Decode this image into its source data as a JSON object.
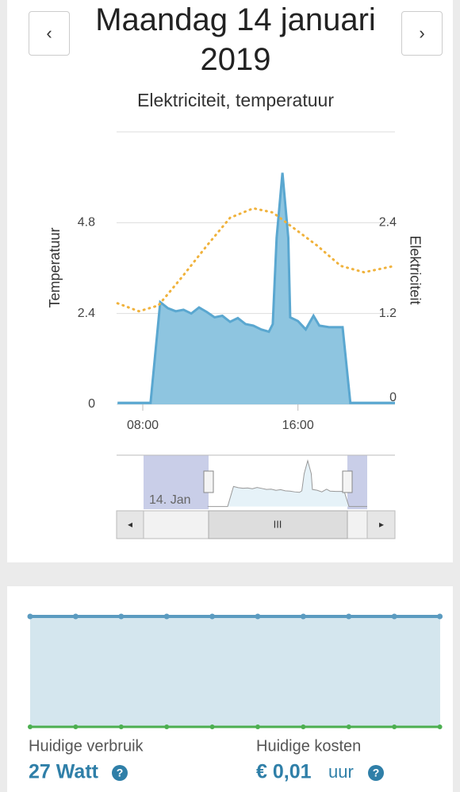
{
  "header": {
    "title": "Maandag 14 januari 2019",
    "prev": "‹",
    "next": "›"
  },
  "chart_data": {
    "type": "area-line",
    "title": "Elektriciteit, temperatuur",
    "y_label": "Temperatuur",
    "y2_label": "Elektriciteit",
    "xlim": [
      6.65,
      21
    ],
    "xticks": [
      {
        "value": 8,
        "label": "08:00"
      },
      {
        "value": 16,
        "label": "16:00"
      }
    ],
    "ylim": [
      0,
      7.2
    ],
    "yticks": [
      0,
      2.4,
      4.8
    ],
    "y2lim": [
      0,
      3.6
    ],
    "y2ticks": [
      0,
      1.2,
      2.4
    ],
    "series": [
      {
        "name": "Elektriciteit",
        "axis": "y2",
        "color": "#5aa7d0",
        "x": [
          6.7,
          8.4,
          8.9,
          9.3,
          9.7,
          10.1,
          10.5,
          10.9,
          11.3,
          11.7,
          12.1,
          12.5,
          12.9,
          13.3,
          13.7,
          14.1,
          14.5,
          14.7,
          14.9,
          15.2,
          15.5,
          15.6,
          16.0,
          16.4,
          16.8,
          17.1,
          17.6,
          18.3,
          18.7,
          21
        ],
        "values": [
          0.02,
          0.02,
          1.35,
          1.27,
          1.23,
          1.25,
          1.2,
          1.28,
          1.22,
          1.15,
          1.17,
          1.09,
          1.14,
          1.06,
          1.04,
          0.99,
          0.96,
          1.06,
          2.2,
          3.06,
          2.2,
          1.15,
          1.1,
          0.99,
          1.17,
          1.04,
          1.02,
          1.02,
          0.02,
          0.02
        ]
      },
      {
        "name": "Temperatuur",
        "axis": "y",
        "color": "#f0b23c",
        "x": [
          6.7,
          7.8,
          8.8,
          10.0,
          11.3,
          12.5,
          13.7,
          14.7,
          15.8,
          17.0,
          18.2,
          19.4,
          21.0
        ],
        "values": [
          2.67,
          2.46,
          2.61,
          3.35,
          4.19,
          4.93,
          5.18,
          5.07,
          4.65,
          4.19,
          3.66,
          3.49,
          3.66
        ]
      }
    ],
    "navigator_label": "14. Jan",
    "scrollbar_thumb": "III",
    "scroll_left": "◂",
    "scroll_right": "▸"
  },
  "summary": {
    "usage_label": "Huidige verbruik",
    "usage_value": "27 Watt",
    "cost_label": "Huidige kosten",
    "cost_value": "€ 0,01",
    "cost_unit": "uur",
    "help": "?"
  }
}
